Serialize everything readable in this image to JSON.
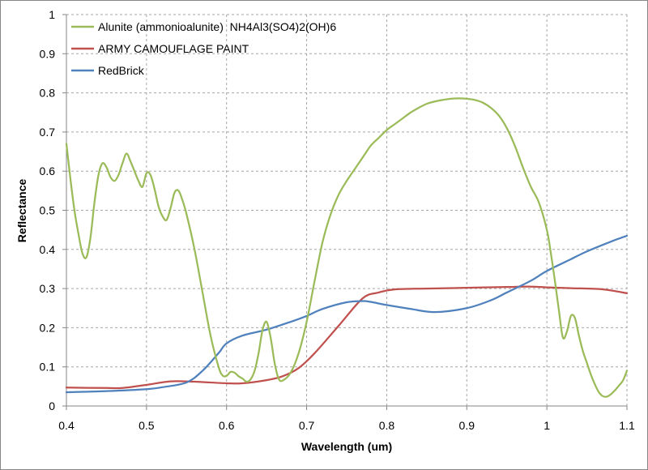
{
  "chart_data": {
    "type": "line",
    "xlabel": "Wavelength (um)",
    "ylabel": "Reflectance",
    "xlim": [
      0.4,
      1.1
    ],
    "ylim": [
      0,
      1
    ],
    "x_ticks": [
      "0.4",
      "0.5",
      "0.6",
      "0.7",
      "0.8",
      "0.9",
      "1",
      "1.1"
    ],
    "y_ticks": [
      "0",
      "0.1",
      "0.2",
      "0.3",
      "0.4",
      "0.5",
      "0.6",
      "0.7",
      "0.8",
      "0.9",
      "1"
    ],
    "grid": true,
    "legend_position": "top-left",
    "series": [
      {
        "name": "Alunite (ammonioalunite)  NH4Al3(SO4)2(OH)6",
        "color": "#9bbb59",
        "x": [
          0.4,
          0.405,
          0.41,
          0.415,
          0.42,
          0.425,
          0.43,
          0.435,
          0.44,
          0.445,
          0.45,
          0.455,
          0.46,
          0.465,
          0.47,
          0.475,
          0.48,
          0.485,
          0.49,
          0.495,
          0.5,
          0.505,
          0.51,
          0.515,
          0.52,
          0.525,
          0.53,
          0.535,
          0.54,
          0.545,
          0.55,
          0.56,
          0.57,
          0.58,
          0.59,
          0.595,
          0.6,
          0.605,
          0.61,
          0.615,
          0.62,
          0.625,
          0.63,
          0.635,
          0.64,
          0.645,
          0.65,
          0.655,
          0.66,
          0.665,
          0.67,
          0.68,
          0.69,
          0.7,
          0.71,
          0.72,
          0.73,
          0.74,
          0.75,
          0.76,
          0.77,
          0.78,
          0.79,
          0.8,
          0.81,
          0.82,
          0.83,
          0.84,
          0.85,
          0.86,
          0.87,
          0.88,
          0.89,
          0.9,
          0.91,
          0.92,
          0.93,
          0.94,
          0.95,
          0.96,
          0.97,
          0.98,
          0.99,
          1.0,
          1.005,
          1.01,
          1.015,
          1.02,
          1.025,
          1.03,
          1.035,
          1.04,
          1.045,
          1.05,
          1.055,
          1.06,
          1.065,
          1.07,
          1.075,
          1.08,
          1.085,
          1.09,
          1.095,
          1.1
        ],
        "y": [
          0.67,
          0.58,
          0.5,
          0.44,
          0.39,
          0.38,
          0.43,
          0.52,
          0.59,
          0.62,
          0.61,
          0.585,
          0.575,
          0.59,
          0.62,
          0.645,
          0.625,
          0.6,
          0.575,
          0.56,
          0.595,
          0.59,
          0.555,
          0.51,
          0.485,
          0.475,
          0.505,
          0.545,
          0.55,
          0.525,
          0.49,
          0.4,
          0.29,
          0.18,
          0.1,
          0.078,
          0.077,
          0.087,
          0.085,
          0.076,
          0.07,
          0.062,
          0.068,
          0.09,
          0.135,
          0.195,
          0.215,
          0.175,
          0.11,
          0.07,
          0.065,
          0.085,
          0.135,
          0.215,
          0.32,
          0.42,
          0.49,
          0.54,
          0.575,
          0.605,
          0.635,
          0.665,
          0.685,
          0.705,
          0.72,
          0.735,
          0.75,
          0.762,
          0.772,
          0.778,
          0.782,
          0.785,
          0.786,
          0.785,
          0.782,
          0.775,
          0.762,
          0.742,
          0.71,
          0.665,
          0.61,
          0.56,
          0.52,
          0.45,
          0.39,
          0.32,
          0.245,
          0.175,
          0.19,
          0.23,
          0.225,
          0.18,
          0.14,
          0.11,
          0.08,
          0.055,
          0.035,
          0.025,
          0.024,
          0.03,
          0.04,
          0.052,
          0.065,
          0.09
        ]
      },
      {
        "name": "ARMY CAMOUFLAGE PAINT",
        "color": "#c0504d",
        "x": [
          0.4,
          0.45,
          0.47,
          0.5,
          0.53,
          0.56,
          0.6,
          0.62,
          0.65,
          0.67,
          0.69,
          0.71,
          0.74,
          0.77,
          0.79,
          0.81,
          0.85,
          0.9,
          0.95,
          0.98,
          1.0,
          1.03,
          1.07,
          1.1
        ],
        "y": [
          0.047,
          0.046,
          0.046,
          0.054,
          0.063,
          0.062,
          0.058,
          0.058,
          0.066,
          0.076,
          0.097,
          0.135,
          0.205,
          0.275,
          0.29,
          0.298,
          0.3,
          0.302,
          0.304,
          0.305,
          0.303,
          0.301,
          0.298,
          0.288
        ]
      },
      {
        "name": "RedBrick",
        "color": "#4f81bd",
        "x": [
          0.4,
          0.45,
          0.5,
          0.52,
          0.55,
          0.57,
          0.59,
          0.6,
          0.62,
          0.65,
          0.68,
          0.7,
          0.72,
          0.75,
          0.77,
          0.78,
          0.8,
          0.83,
          0.86,
          0.9,
          0.93,
          0.95,
          0.98,
          1.0,
          1.03,
          1.05,
          1.08,
          1.1
        ],
        "y": [
          0.035,
          0.038,
          0.043,
          0.048,
          0.06,
          0.09,
          0.135,
          0.16,
          0.18,
          0.195,
          0.215,
          0.23,
          0.248,
          0.265,
          0.268,
          0.266,
          0.258,
          0.248,
          0.24,
          0.25,
          0.27,
          0.29,
          0.32,
          0.345,
          0.375,
          0.395,
          0.42,
          0.435
        ]
      }
    ]
  }
}
